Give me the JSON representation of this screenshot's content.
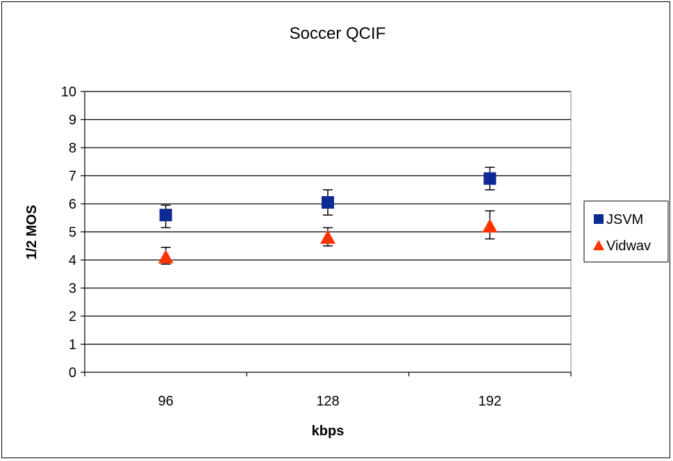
{
  "chart_data": {
    "type": "scatter",
    "title": "Soccer QCIF",
    "xlabel": "kbps",
    "ylabel": "1/2 MOS",
    "categories": [
      "96",
      "128",
      "192"
    ],
    "ylim": [
      0,
      10
    ],
    "yticks": [
      0,
      1,
      2,
      3,
      4,
      5,
      6,
      7,
      8,
      9,
      10
    ],
    "grid": true,
    "legend_position": "right",
    "series": [
      {
        "name": "JSVM",
        "marker": "square",
        "color": "#0d2a94",
        "values": [
          5.6,
          6.05,
          6.9
        ],
        "error_low": [
          5.15,
          5.6,
          6.5
        ],
        "error_high": [
          5.95,
          6.5,
          7.3
        ]
      },
      {
        "name": "Vidwav",
        "marker": "triangle",
        "color": "#ff3300",
        "values": [
          4.1,
          4.8,
          5.2
        ],
        "error_low": [
          3.85,
          4.5,
          4.75
        ],
        "error_high": [
          4.45,
          5.15,
          5.75
        ]
      }
    ]
  }
}
